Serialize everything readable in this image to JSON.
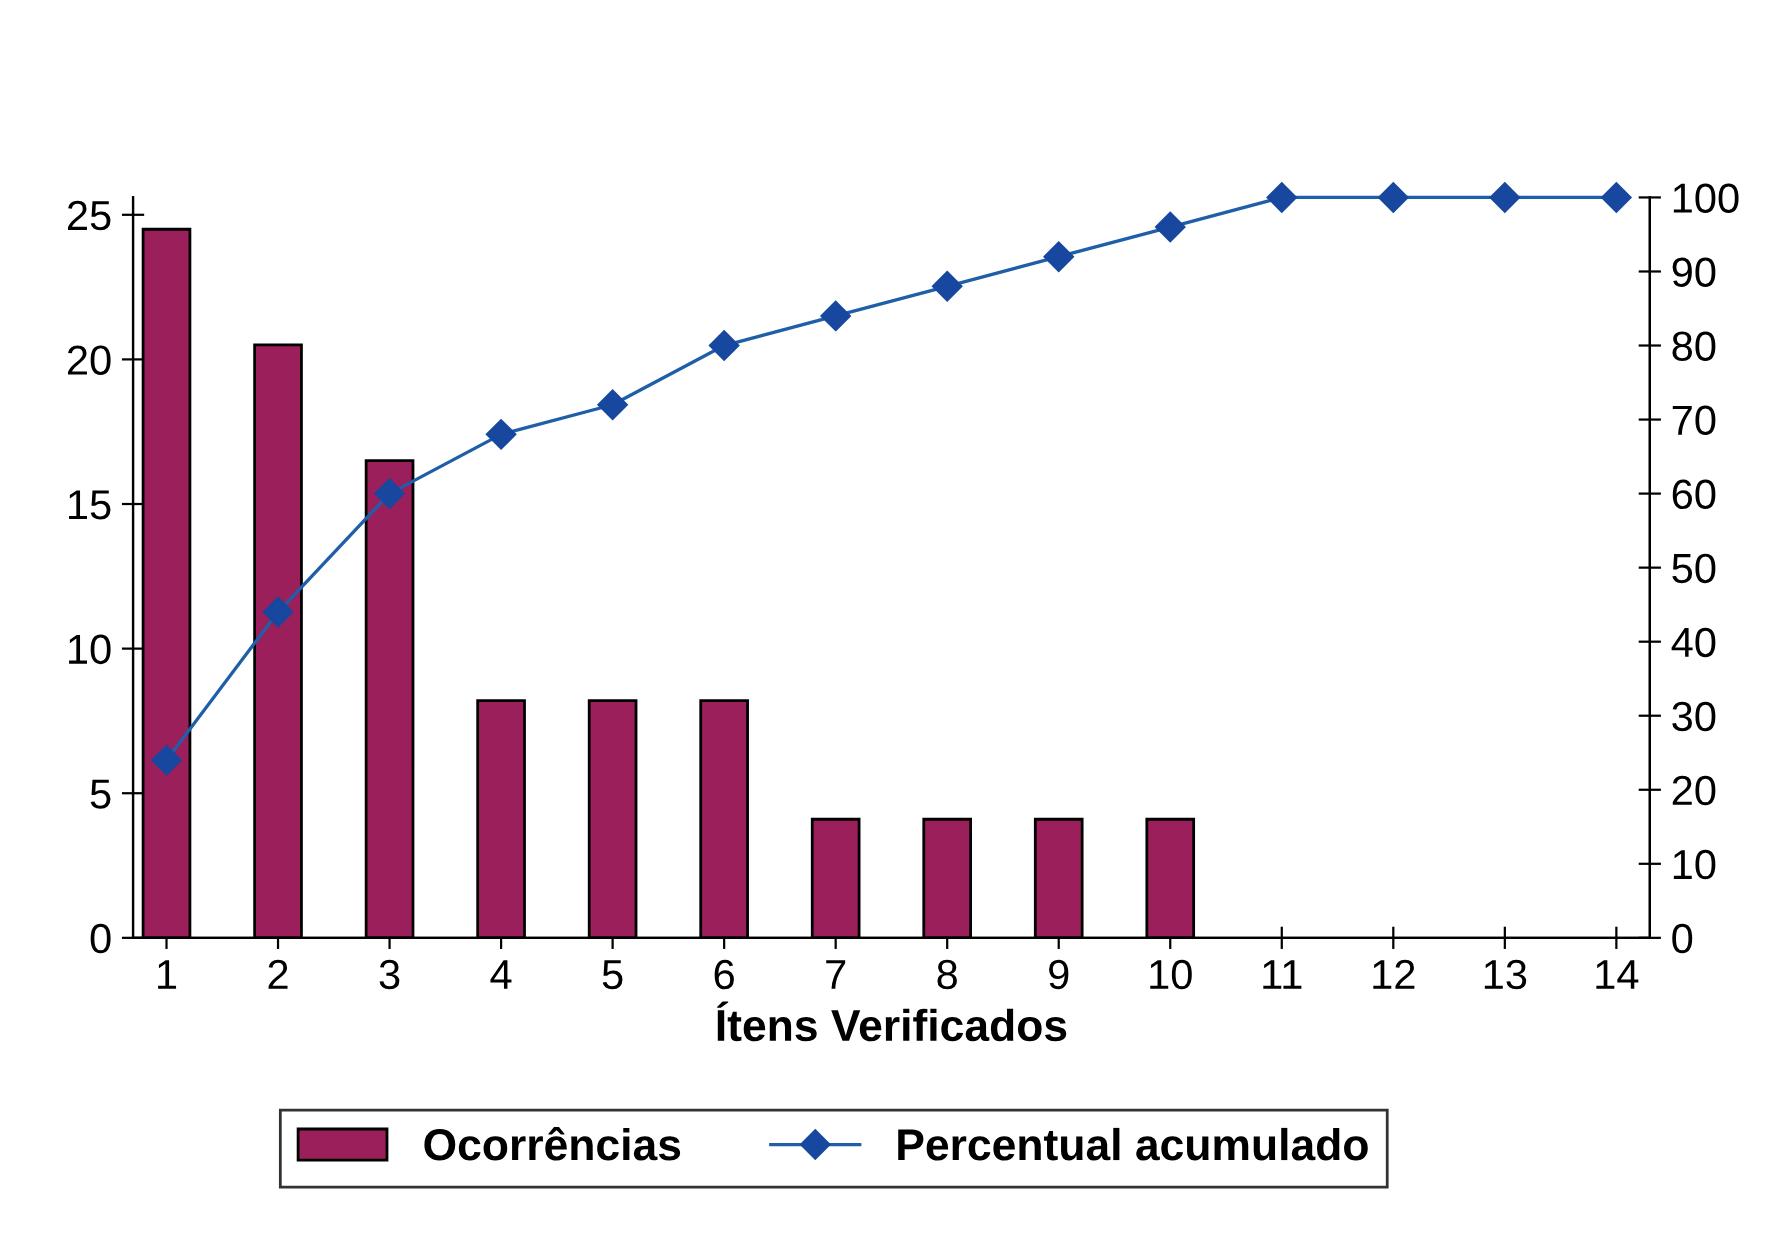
{
  "chart_data": {
    "type": "bar",
    "xlabel": "Ítens Verificados",
    "categories": [
      "1",
      "2",
      "3",
      "4",
      "5",
      "6",
      "7",
      "8",
      "9",
      "10",
      "11",
      "12",
      "13",
      "14"
    ],
    "series": [
      {
        "name": "Ocorrências",
        "color": "#9b1f5a",
        "values": [
          24.5,
          20.5,
          16.5,
          8.2,
          8.2,
          8.2,
          4.1,
          4.1,
          4.1,
          4.1,
          null,
          null,
          null,
          null
        ]
      },
      {
        "name": "Percentual acumulado",
        "type": "line",
        "axis": "y2",
        "color": "#1f5fa8",
        "marker": "diamond",
        "values": [
          24,
          44,
          60,
          68,
          72,
          80,
          84,
          88,
          92,
          96,
          100,
          100,
          100,
          100
        ]
      }
    ],
    "ylim": [
      0,
      25.6
    ],
    "yticks": [
      0,
      5,
      10,
      15,
      20,
      25
    ],
    "y2lim": [
      0,
      100
    ],
    "y2ticks": [
      0,
      10,
      20,
      30,
      40,
      50,
      60,
      70,
      80,
      90,
      100
    ],
    "grid": false,
    "legend": "bottom"
  }
}
